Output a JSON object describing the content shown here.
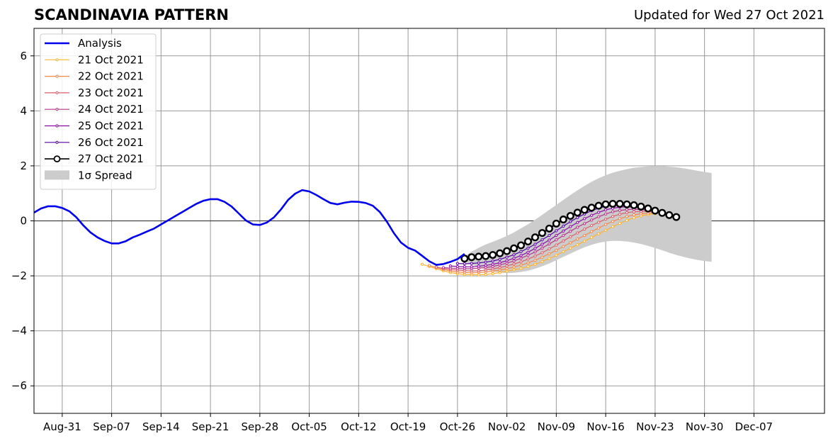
{
  "header": {
    "title": "SCANDINAVIA PATTERN",
    "updated": "Updated for Wed 27 Oct 2021"
  },
  "chart_data": {
    "type": "line",
    "ylim": [
      -7,
      7
    ],
    "yticks": [
      -6,
      -4,
      -2,
      0,
      2,
      4,
      6
    ],
    "ytick_labels": [
      "−6",
      "−4",
      "−2",
      "0",
      "2",
      "4",
      "6"
    ],
    "xlim": [
      "2021-08-27",
      "2021-12-17"
    ],
    "xtick_labels": [
      "Aug-31",
      "Sep-07",
      "Sep-14",
      "Sep-21",
      "Sep-28",
      "Oct-05",
      "Oct-12",
      "Oct-19",
      "Oct-26",
      "Nov-02",
      "Nov-09",
      "Nov-16",
      "Nov-23",
      "Nov-30",
      "Dec-07"
    ],
    "xtick_dates": [
      "2021-08-31",
      "2021-09-07",
      "2021-09-14",
      "2021-09-21",
      "2021-09-28",
      "2021-10-05",
      "2021-10-12",
      "2021-10-19",
      "2021-10-26",
      "2021-11-02",
      "2021-11-09",
      "2021-11-16",
      "2021-11-23",
      "2021-11-30",
      "2021-12-07"
    ],
    "grid": true,
    "legend_position": "upper-left",
    "analysis": {
      "name": "Analysis",
      "color": "#0000ee",
      "dates": [
        "2021-08-27",
        "2021-08-28",
        "2021-08-29",
        "2021-08-30",
        "2021-08-31",
        "2021-09-01",
        "2021-09-02",
        "2021-09-03",
        "2021-09-04",
        "2021-09-05",
        "2021-09-06",
        "2021-09-07",
        "2021-09-08",
        "2021-09-09",
        "2021-09-10",
        "2021-09-11",
        "2021-09-12",
        "2021-09-13",
        "2021-09-14",
        "2021-09-15",
        "2021-09-16",
        "2021-09-17",
        "2021-09-18",
        "2021-09-19",
        "2021-09-20",
        "2021-09-21",
        "2021-09-22",
        "2021-09-23",
        "2021-09-24",
        "2021-09-25",
        "2021-09-26",
        "2021-09-27",
        "2021-09-28",
        "2021-09-29",
        "2021-09-30",
        "2021-10-01",
        "2021-10-02",
        "2021-10-03",
        "2021-10-04",
        "2021-10-05",
        "2021-10-06",
        "2021-10-07",
        "2021-10-08",
        "2021-10-09",
        "2021-10-10",
        "2021-10-11",
        "2021-10-12",
        "2021-10-13",
        "2021-10-14",
        "2021-10-15",
        "2021-10-16",
        "2021-10-17",
        "2021-10-18",
        "2021-10-19",
        "2021-10-20",
        "2021-10-21",
        "2021-10-22",
        "2021-10-23",
        "2021-10-24",
        "2021-10-25",
        "2021-10-26",
        "2021-10-27"
      ],
      "values": [
        0.3,
        0.45,
        0.53,
        0.53,
        0.47,
        0.35,
        0.13,
        -0.17,
        -0.42,
        -0.6,
        -0.73,
        -0.82,
        -0.82,
        -0.74,
        -0.6,
        -0.5,
        -0.39,
        -0.28,
        -0.13,
        0.02,
        0.17,
        0.32,
        0.47,
        0.62,
        0.73,
        0.79,
        0.79,
        0.69,
        0.52,
        0.27,
        0.02,
        -0.13,
        -0.15,
        -0.06,
        0.13,
        0.42,
        0.76,
        0.99,
        1.12,
        1.07,
        0.94,
        0.79,
        0.65,
        0.6,
        0.66,
        0.7,
        0.69,
        0.65,
        0.55,
        0.32,
        -0.03,
        -0.45,
        -0.79,
        -0.98,
        -1.08,
        -1.27,
        -1.47,
        -1.6,
        -1.57,
        -1.49,
        -1.39,
        -1.2
      ]
    },
    "forecasts": [
      {
        "name": "21 Oct 2021",
        "color": "#fdb42f",
        "marker": "small-dot",
        "dates_start": "2021-10-21",
        "values": [
          -1.58,
          -1.66,
          -1.74,
          -1.82,
          -1.88,
          -1.92,
          -1.95,
          -1.96,
          -1.96,
          -1.95,
          -1.92,
          -1.88,
          -1.83,
          -1.78,
          -1.73,
          -1.66,
          -1.58,
          -1.48,
          -1.37,
          -1.25,
          -1.12,
          -0.99,
          -0.87,
          -0.74,
          -0.6,
          -0.47,
          -0.34,
          -0.21,
          -0.09,
          0.02,
          0.11,
          0.18,
          0.23,
          0.26
        ]
      },
      {
        "name": "22 Oct 2021",
        "color": "#f48849",
        "marker": "small-dot",
        "dates_start": "2021-10-22",
        "values": [
          -1.62,
          -1.7,
          -1.77,
          -1.82,
          -1.86,
          -1.88,
          -1.89,
          -1.88,
          -1.86,
          -1.83,
          -1.79,
          -1.74,
          -1.68,
          -1.61,
          -1.53,
          -1.43,
          -1.32,
          -1.2,
          -1.07,
          -0.93,
          -0.8,
          -0.66,
          -0.53,
          -0.39,
          -0.26,
          -0.13,
          -0.02,
          0.08,
          0.16,
          0.22,
          0.26,
          0.28,
          0.3
        ]
      },
      {
        "name": "23 Oct 2021",
        "color": "#db5c68",
        "marker": "small-dot",
        "dates_start": "2021-10-23",
        "values": [
          -1.68,
          -1.73,
          -1.77,
          -1.79,
          -1.81,
          -1.82,
          -1.82,
          -1.79,
          -1.75,
          -1.7,
          -1.64,
          -1.57,
          -1.49,
          -1.39,
          -1.28,
          -1.16,
          -1.02,
          -0.88,
          -0.73,
          -0.58,
          -0.44,
          -0.3,
          -0.17,
          -0.05,
          0.06,
          0.16,
          0.24,
          0.3,
          0.33,
          0.34,
          0.34,
          0.33
        ]
      },
      {
        "name": "24 Oct 2021",
        "color": "#b83289",
        "marker": "small-dot",
        "dates_start": "2021-10-24",
        "values": [
          -1.7,
          -1.72,
          -1.73,
          -1.74,
          -1.74,
          -1.72,
          -1.7,
          -1.66,
          -1.6,
          -1.54,
          -1.46,
          -1.36,
          -1.25,
          -1.13,
          -0.99,
          -0.84,
          -0.69,
          -0.53,
          -0.38,
          -0.23,
          -0.1,
          0.03,
          0.15,
          0.25,
          0.33,
          0.38,
          0.41,
          0.42,
          0.41,
          0.38,
          0.33
        ]
      },
      {
        "name": "25 Oct 2021",
        "color": "#8b0aa5",
        "marker": "small-dot",
        "dates_start": "2021-10-25",
        "values": [
          -1.64,
          -1.66,
          -1.67,
          -1.67,
          -1.65,
          -1.62,
          -1.58,
          -1.52,
          -1.45,
          -1.36,
          -1.26,
          -1.14,
          -1.0,
          -0.85,
          -0.7,
          -0.53,
          -0.37,
          -0.21,
          -0.06,
          0.08,
          0.2,
          0.31,
          0.4,
          0.46,
          0.5,
          0.51,
          0.5,
          0.47,
          0.43,
          0.37
        ]
      },
      {
        "name": "26 Oct 2021",
        "color": "#5302a3",
        "marker": "small-dot",
        "dates_start": "2021-10-26",
        "values": [
          -1.55,
          -1.56,
          -1.55,
          -1.53,
          -1.5,
          -1.46,
          -1.4,
          -1.32,
          -1.23,
          -1.12,
          -0.99,
          -0.85,
          -0.69,
          -0.53,
          -0.36,
          -0.19,
          -0.03,
          0.12,
          0.25,
          0.37,
          0.46,
          0.53,
          0.57,
          0.58,
          0.57,
          0.54,
          0.49,
          0.42
        ]
      },
      {
        "name": "27 Oct 2021",
        "color": "#000000",
        "marker": "open-circle",
        "dates_start": "2021-10-27",
        "values": [
          -1.37,
          -1.32,
          -1.3,
          -1.28,
          -1.24,
          -1.18,
          -1.1,
          -1.0,
          -0.89,
          -0.75,
          -0.6,
          -0.44,
          -0.28,
          -0.1,
          0.05,
          0.18,
          0.3,
          0.4,
          0.48,
          0.55,
          0.6,
          0.62,
          0.62,
          0.6,
          0.57,
          0.52,
          0.45,
          0.37,
          0.29,
          0.21,
          0.14
        ]
      }
    ],
    "spread": {
      "name": "1σ Spread",
      "color": "#cccccc",
      "dates_start": "2021-10-27",
      "upper": [
        -1.3,
        -1.12,
        -0.98,
        -0.86,
        -0.76,
        -0.66,
        -0.55,
        -0.42,
        -0.27,
        -0.12,
        0.04,
        0.22,
        0.4,
        0.58,
        0.76,
        0.94,
        1.11,
        1.27,
        1.42,
        1.55,
        1.66,
        1.75,
        1.82,
        1.88,
        1.93,
        1.96,
        1.98,
        1.99,
        1.99,
        1.97,
        1.95,
        1.91,
        1.87,
        1.82,
        1.78,
        1.74
      ],
      "lower": [
        -1.48,
        -1.58,
        -1.68,
        -1.76,
        -1.84,
        -1.88,
        -1.9,
        -1.89,
        -1.86,
        -1.81,
        -1.74,
        -1.65,
        -1.55,
        -1.43,
        -1.31,
        -1.19,
        -1.07,
        -0.96,
        -0.87,
        -0.8,
        -0.75,
        -0.73,
        -0.73,
        -0.75,
        -0.79,
        -0.84,
        -0.91,
        -0.99,
        -1.07,
        -1.16,
        -1.24,
        -1.31,
        -1.37,
        -1.42,
        -1.46,
        -1.49
      ]
    }
  }
}
